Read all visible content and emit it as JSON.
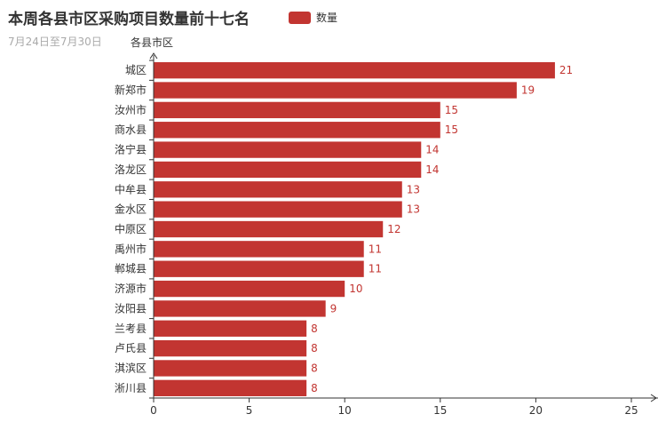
{
  "chart_data": {
    "type": "bar",
    "orientation": "horizontal",
    "title": "本周各县市区采购项目数量前十七名",
    "subtitle": "7月24日至7月30日",
    "ylabel": "各县市区",
    "xlabel": "",
    "legend": [
      "数量"
    ],
    "legend_placement": "top",
    "categories": [
      "城区",
      "新郑市",
      "汝州市",
      "商水县",
      "洛宁县",
      "洛龙区",
      "中牟县",
      "金水区",
      "中原区",
      "禹州市",
      "郸城县",
      "济源市",
      "汝阳县",
      "兰考县",
      "卢氏县",
      "淇滨区",
      "淅川县"
    ],
    "series": [
      {
        "name": "数量",
        "values": [
          21,
          19,
          15,
          15,
          14,
          14,
          13,
          13,
          12,
          11,
          11,
          10,
          9,
          8,
          8,
          8,
          8
        ]
      }
    ],
    "xlim": [
      0,
      25
    ],
    "xticks": [
      0,
      5,
      10,
      15,
      20,
      25
    ],
    "grid": false,
    "color": "#c23531",
    "label_color": "#c23531"
  }
}
